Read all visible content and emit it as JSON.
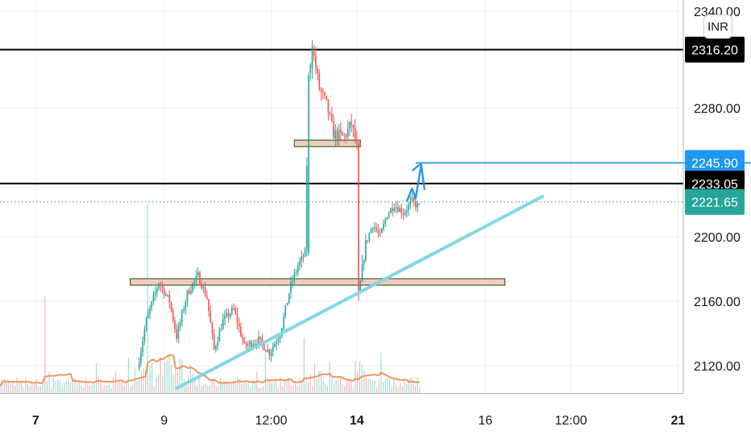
{
  "currency": "INR",
  "chart_data": {
    "type": "candlestick",
    "y_axis": {
      "range": [
        2103,
        2347
      ],
      "ticks": [
        {
          "value": 2120,
          "label": "2120.00"
        },
        {
          "value": 2160,
          "label": "2160.00"
        },
        {
          "value": 2200,
          "label": "2200.00"
        },
        {
          "value": 2280,
          "label": "2280.00"
        },
        {
          "value": 2340,
          "label": "2340.00"
        }
      ]
    },
    "x_axis": {
      "range_hours": [
        -20,
        363
      ],
      "ticks": [
        {
          "label": "7",
          "bold": true,
          "hour": 0
        },
        {
          "label": "9",
          "bold": false,
          "hour": 72
        },
        {
          "label": "12:00",
          "bold": false,
          "hour": 132
        },
        {
          "label": "14",
          "bold": true,
          "hour": 180
        },
        {
          "label": "16",
          "bold": false,
          "hour": 252
        },
        {
          "label": "12:00",
          "bold": false,
          "hour": 300
        },
        {
          "label": "21",
          "bold": true,
          "hour": 360
        }
      ]
    },
    "price_tags": [
      {
        "label": "2316.20",
        "value": 2316.2,
        "color": "#000000"
      },
      {
        "label": "2245.90",
        "value": 2245.9,
        "color": "#2196f3"
      },
      {
        "label": "2233.05",
        "value": 2233.05,
        "color": "#000000"
      },
      {
        "label": "2221.65",
        "value": 2221.65,
        "color": "#26a69a"
      }
    ],
    "horizontal_lines": [
      {
        "value": 2316.2,
        "color": "#000000",
        "style": "solid"
      },
      {
        "value": 2233.05,
        "color": "#000000",
        "style": "solid"
      },
      {
        "value": 2221.65,
        "color": "#26a69a",
        "style": "dotted"
      }
    ],
    "zones": [
      {
        "hour_start": 53,
        "hour_end": 263,
        "low": 2170,
        "high": 2174
      },
      {
        "hour_start": 145,
        "hour_end": 182,
        "low": 2256,
        "high": 2260
      }
    ],
    "trendline": {
      "from": {
        "hour": 79,
        "value": 2106
      },
      "to": {
        "hour": 284,
        "value": 2225
      },
      "color": "#7fd8e6"
    },
    "projection": {
      "color": "#2196f3",
      "target_line": {
        "hour_start": 213,
        "value": 2245.9
      }
    },
    "colors": {
      "up": "#26a69a",
      "down": "#ef5350",
      "volume_up": "#a7dbd6",
      "volume_down": "#f5b7b6",
      "volume_ma": "#f0955f"
    }
  }
}
